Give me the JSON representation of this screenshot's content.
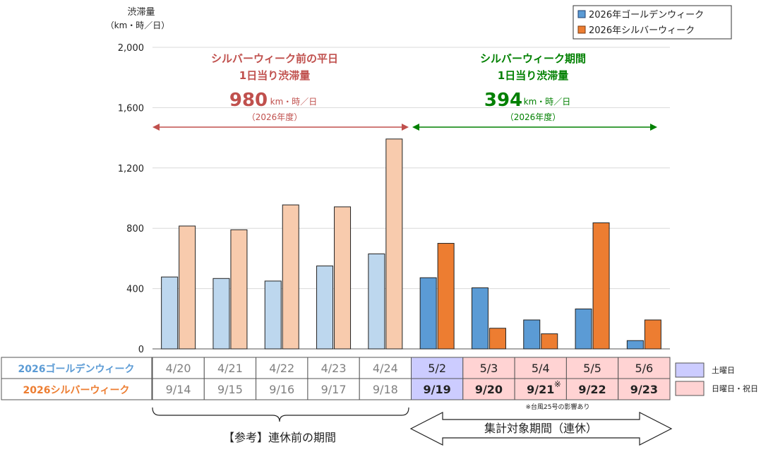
{
  "chart_data": {
    "type": "bar",
    "ylabel": "渋滞量",
    "yunit": "（km・時／日）",
    "ylim": [
      0,
      2000
    ],
    "yticks": [
      "0",
      "400",
      "800",
      "1,200",
      "1,600",
      "2,000"
    ],
    "ytick_values": [
      0,
      400,
      800,
      1200,
      1600,
      2000
    ],
    "grid": true,
    "legend_position": "top-right",
    "series": [
      {
        "name": "2026年ゴールデンウィーク",
        "values": [
          477,
          467,
          450,
          550,
          630,
          472,
          405,
          192,
          265,
          55
        ]
      },
      {
        "name": "2026年シルバーウィーク",
        "values": [
          815,
          790,
          955,
          942,
          1392,
          700,
          137,
          100,
          836,
          192
        ]
      }
    ],
    "colors": {
      "gw_light": "#bdd7ee",
      "sw_light": "#f8cbad",
      "gw_dark": "#5b9bd5",
      "sw_dark": "#ed7d31",
      "left_annotation": "#c0504d",
      "right_annotation": "#008000",
      "saturday_fill": "#ccccff",
      "holiday_fill": "#ffd3d3"
    },
    "table": {
      "row_labels": [
        "2026ゴールデンウィーク",
        "2026シルバーウィーク"
      ],
      "gw_dates": [
        "4/20",
        "4/21",
        "4/22",
        "4/23",
        "4/24",
        "5/2",
        "5/3",
        "5/4",
        "5/5",
        "5/6"
      ],
      "sw_dates": [
        "9/14",
        "9/15",
        "9/16",
        "9/17",
        "9/18",
        "9/19",
        "9/20",
        "9/21",
        "9/22",
        "9/23"
      ],
      "sw_mark_index": 7,
      "sw_mark": "※",
      "cell_fill": [
        "none",
        "none",
        "none",
        "none",
        "none",
        "saturday",
        "holiday",
        "holiday",
        "holiday",
        "holiday"
      ],
      "sw_cell_fill": [
        "none",
        "none",
        "none",
        "none",
        "none",
        "saturday",
        "holiday",
        "holiday",
        "holiday",
        "holiday"
      ]
    },
    "day_legend": {
      "saturday": "土曜日",
      "holiday": "日曜日・祝日"
    },
    "footnote": "※台風25号の影響あり",
    "annotations": {
      "left": {
        "line1": "シルバーウィーク前の平日",
        "line2": "1日当り渋滞量",
        "value": "980",
        "unit": "km・時／日",
        "year": "（2026年度）"
      },
      "right": {
        "line1": "シルバーウィーク期間",
        "line2": "1日当り渋滞量",
        "value": "394",
        "unit": "km・時／日",
        "year": "（2026年度）"
      }
    },
    "bottom_labels": {
      "reference": "【参考】連休前の期間",
      "target": "集計対象期間（連休）"
    }
  }
}
